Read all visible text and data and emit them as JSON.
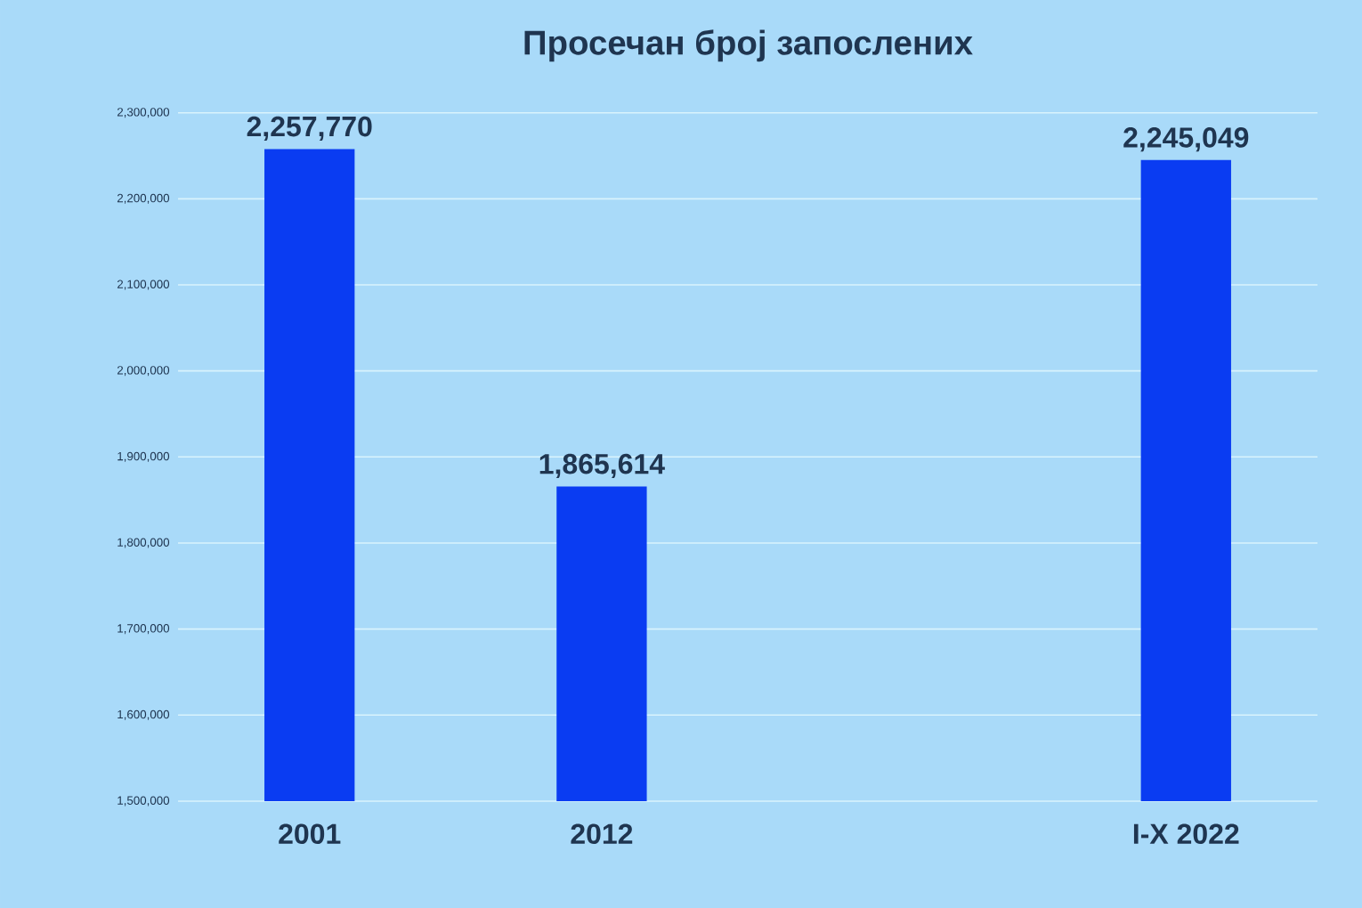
{
  "chart_data": {
    "type": "bar",
    "title": "Просечан број запослених",
    "categories": [
      "2001",
      "2012",
      null,
      "I-X 2022"
    ],
    "values": [
      2257770,
      1865614,
      null,
      2245049
    ],
    "value_labels": [
      "2,257,770",
      "1,865,614",
      null,
      "2,245,049"
    ],
    "color": "#0a3cf2",
    "ylim": [
      1500000,
      2300000
    ],
    "yticks": [
      {
        "value": 1500000,
        "label": "1,500,000"
      },
      {
        "value": 1600000,
        "label": "1,600,000"
      },
      {
        "value": 1700000,
        "label": "1,700,000"
      },
      {
        "value": 1800000,
        "label": "1,800,000"
      },
      {
        "value": 1900000,
        "label": "1,900,000"
      },
      {
        "value": 2000000,
        "label": "2,000,000"
      },
      {
        "value": 2100000,
        "label": "2,100,000"
      },
      {
        "value": 2200000,
        "label": "2,200,000"
      },
      {
        "value": 2300000,
        "label": "2,300,000"
      }
    ],
    "grid": "y"
  }
}
